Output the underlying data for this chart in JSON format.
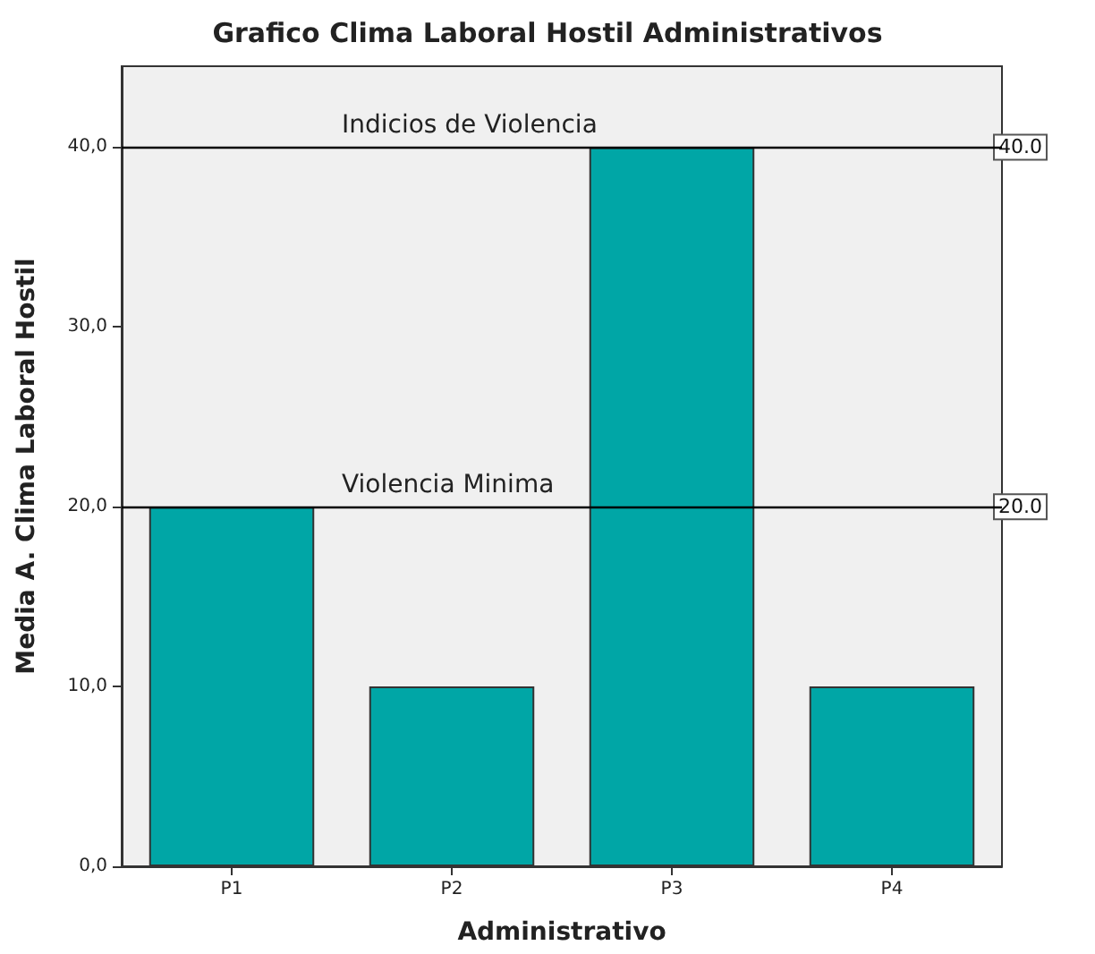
{
  "chart_data": {
    "type": "bar",
    "title": "Grafico Clima Laboral Hostil Administrativos",
    "xlabel": "Administrativo",
    "ylabel": "Media A. Clima Laboral Hostil",
    "categories": [
      "P1",
      "P2",
      "P3",
      "P4"
    ],
    "values": [
      20,
      10,
      40,
      10
    ],
    "color": "#00a6a6",
    "ylim": [
      0,
      44.5
    ],
    "yticks": [
      {
        "value": 0,
        "label": "0,0"
      },
      {
        "value": 10,
        "label": "10,0"
      },
      {
        "value": 20,
        "label": "20,0"
      },
      {
        "value": 30,
        "label": "30,0"
      },
      {
        "value": 40,
        "label": "40,0"
      }
    ],
    "grid": false,
    "ref_lines": [
      {
        "axis": "y",
        "value": 40,
        "label": "Indicios de Violencia",
        "color": "#000000"
      },
      {
        "axis": "y",
        "value": 20,
        "label": "Violencia Minima",
        "color": "#000000"
      }
    ],
    "annotations": [
      {
        "text": "40.0",
        "y": 40
      },
      {
        "text": "20.0",
        "y": 20
      }
    ]
  }
}
